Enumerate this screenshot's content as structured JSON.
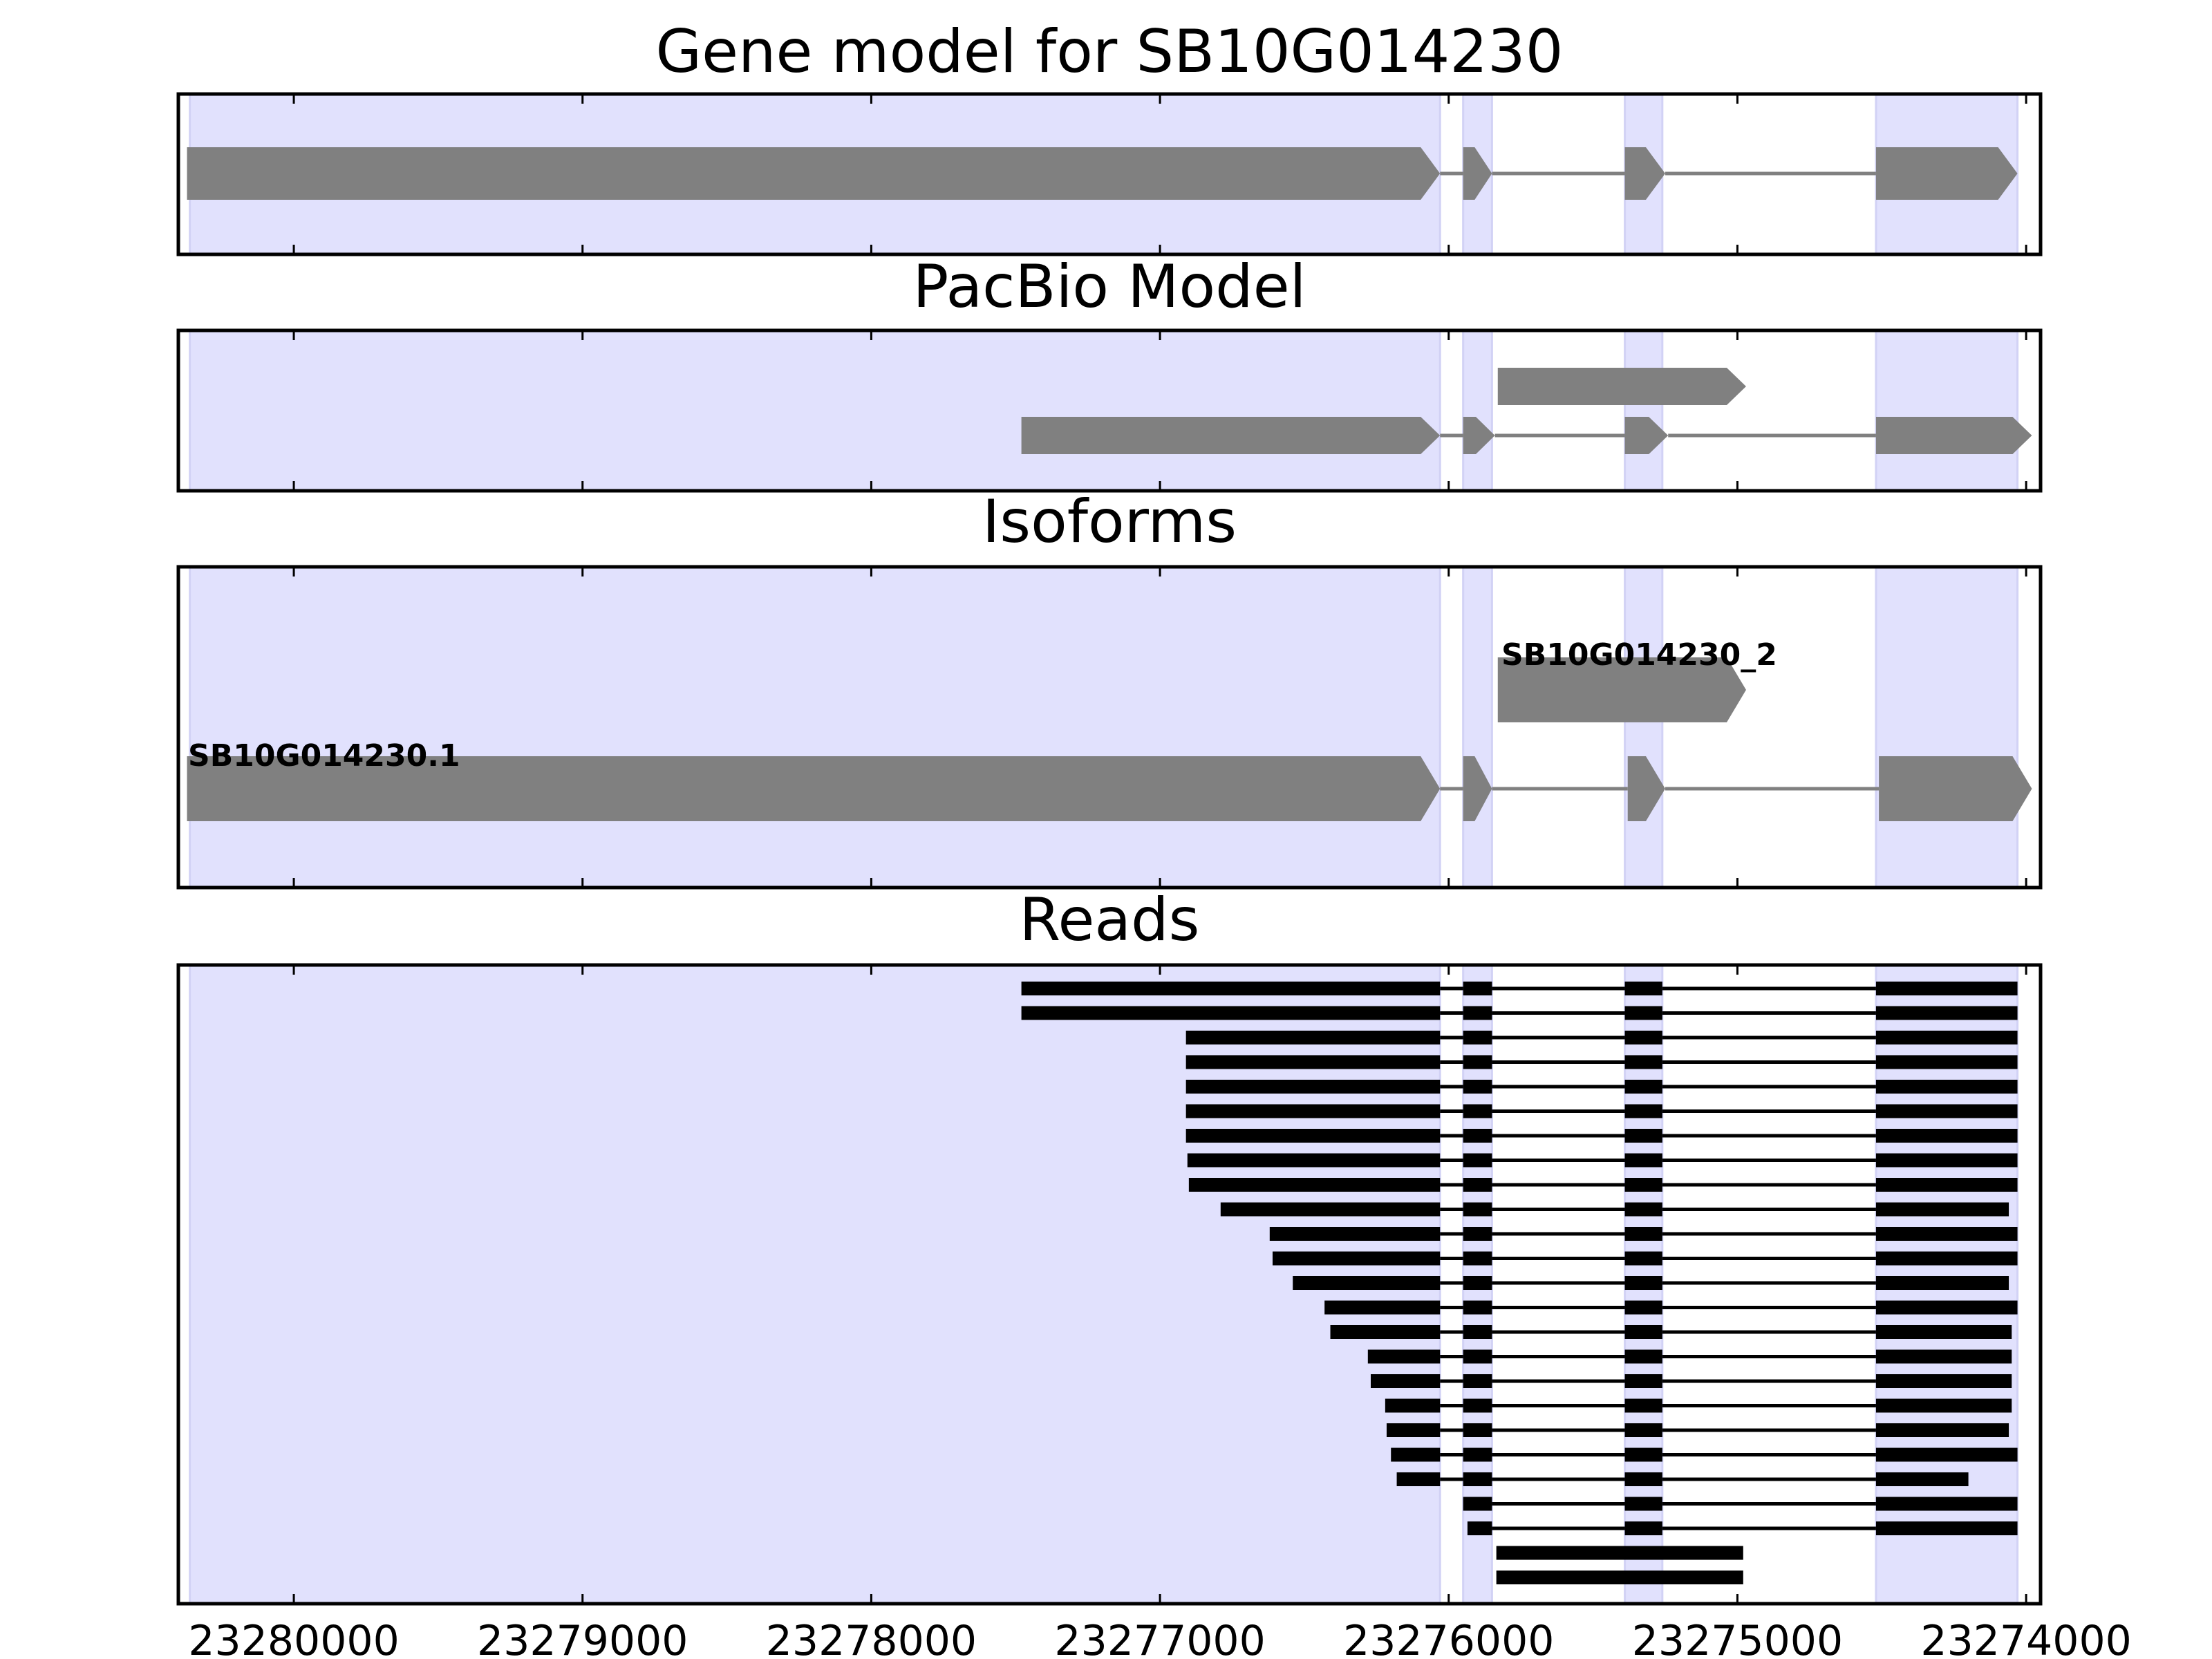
{
  "panels": {
    "gene_model": {
      "title": "Gene model for SB10G014230"
    },
    "pacbio": {
      "title": "PacBio Model"
    },
    "isoforms": {
      "title": "Isoforms",
      "labels": [
        "SB10G014230.1",
        "SB10G014230_2"
      ]
    },
    "reads": {
      "title": "Reads"
    }
  },
  "colors": {
    "exon_shade": "#e1e1fd",
    "model_block": "#808080",
    "read": "#000000"
  },
  "chart_data": {
    "type": "gene_model",
    "axis": {
      "xlim": [
        23280400,
        23273950
      ],
      "direction": "reversed",
      "ticks": [
        23280000,
        23279000,
        23278000,
        23277000,
        23276000,
        23275000,
        23274000
      ],
      "tick_labels": [
        "23280000",
        "23279000",
        "23278000",
        "23277000",
        "23276000",
        "23275000",
        "23274000"
      ]
    },
    "shaded_exons": [
      [
        23280360,
        23276030
      ],
      [
        23275950,
        23275850
      ],
      [
        23275390,
        23275260
      ],
      [
        23274520,
        23274030
      ]
    ],
    "gene_model": {
      "exons": [
        [
          23280370,
          23276030
        ],
        [
          23275950,
          23275850
        ],
        [
          23275390,
          23275250
        ],
        [
          23274520,
          23274030
        ]
      ]
    },
    "pacbio_models": [
      {
        "exons": [
          [
            23275830,
            23274970
          ]
        ]
      },
      {
        "exons": [
          [
            23277480,
            23276030
          ],
          [
            23275950,
            23275840
          ],
          [
            23275390,
            23275240
          ],
          [
            23274520,
            23273980
          ]
        ]
      }
    ],
    "isoforms": [
      {
        "name": "SB10G014230.1",
        "exons": [
          [
            23280370,
            23276030
          ],
          [
            23275950,
            23275850
          ],
          [
            23275380,
            23275250
          ],
          [
            23274510,
            23273980
          ]
        ]
      },
      {
        "name": "SB10G014230_2",
        "exons": [
          [
            23275830,
            23274970
          ]
        ]
      }
    ],
    "reads": [
      {
        "start": 23277480,
        "end": 23273980
      },
      {
        "start": 23277480,
        "end": 23273980
      },
      {
        "start": 23276910,
        "end": 23273980
      },
      {
        "start": 23276910,
        "end": 23273980
      },
      {
        "start": 23276910,
        "end": 23273980
      },
      {
        "start": 23276910,
        "end": 23273990
      },
      {
        "start": 23276910,
        "end": 23273990
      },
      {
        "start": 23276905,
        "end": 23273980
      },
      {
        "start": 23276900,
        "end": 23273990
      },
      {
        "start": 23276790,
        "end": 23274060
      },
      {
        "start": 23276620,
        "end": 23273990
      },
      {
        "start": 23276610,
        "end": 23273980
      },
      {
        "start": 23276540,
        "end": 23274060
      },
      {
        "start": 23276430,
        "end": 23274030
      },
      {
        "start": 23276410,
        "end": 23274050
      },
      {
        "start": 23276280,
        "end": 23274050
      },
      {
        "start": 23276270,
        "end": 23274050
      },
      {
        "start": 23276220,
        "end": 23274050
      },
      {
        "start": 23276215,
        "end": 23274060
      },
      {
        "start": 23276200,
        "end": 23274030
      },
      {
        "start": 23276180,
        "end": 23274200
      },
      {
        "start": 23275950,
        "end": 23274030
      },
      {
        "start": 23275935,
        "end": 23273990
      },
      {
        "start": 23275835,
        "end": 23274980,
        "single": true
      },
      {
        "start": 23275835,
        "end": 23274980,
        "single": true
      }
    ]
  }
}
